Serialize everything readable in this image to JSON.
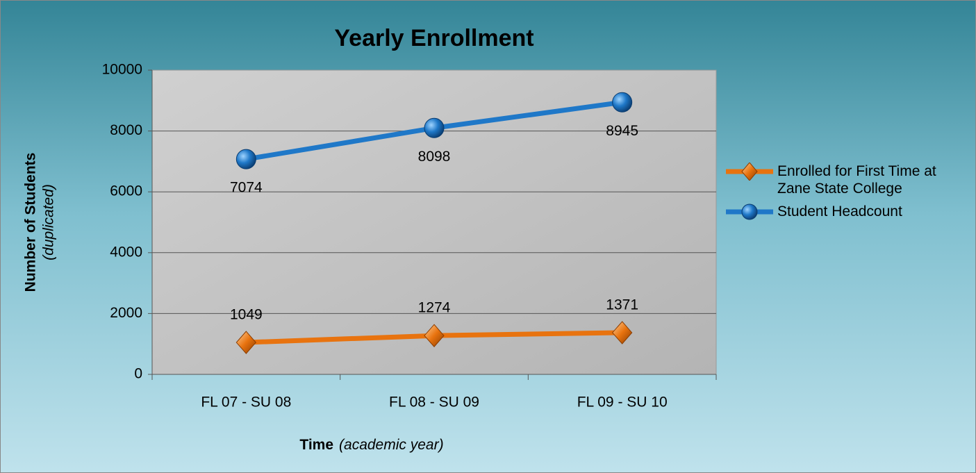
{
  "chart_data": {
    "type": "line",
    "title": "Yearly Enrollment",
    "ylabel": "Number of Students",
    "ylabel_note": "(duplicated)",
    "xlabel": "Time",
    "xlabel_note": "(academic year)",
    "categories": [
      "FL 07 - SU 08",
      "FL 08 - SU 09",
      "FL 09 - SU 10"
    ],
    "series": [
      {
        "name": "Enrolled for First Time at Zane State College",
        "color": "#e8730f",
        "marker": "diamond",
        "values": [
          1049,
          1274,
          1371
        ]
      },
      {
        "name": "Student Headcount",
        "color": "#1f78c8",
        "marker": "circle",
        "values": [
          7074,
          8098,
          8945
        ]
      }
    ],
    "ylim": [
      0,
      10000
    ],
    "yticks": [
      0,
      2000,
      4000,
      6000,
      8000,
      10000
    ],
    "grid": true,
    "legend": "right"
  }
}
